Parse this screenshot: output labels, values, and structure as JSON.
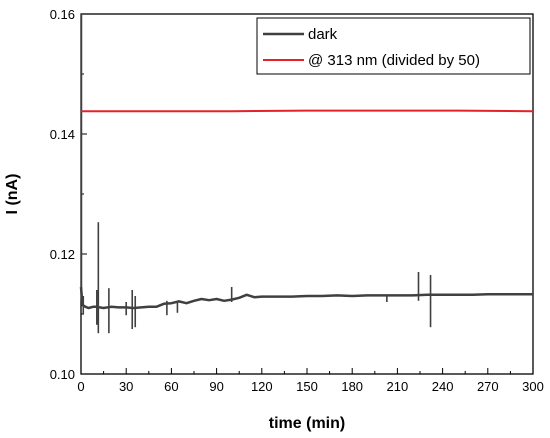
{
  "chart_data": {
    "type": "line",
    "xlabel": "time (min)",
    "ylabel": "I (nA)",
    "xlim": [
      0,
      300
    ],
    "ylim": [
      0.1,
      0.16
    ],
    "x_ticks": [
      "0",
      "30",
      "60",
      "90",
      "120",
      "150",
      "180",
      "210",
      "240",
      "270",
      "300"
    ],
    "y_ticks": [
      "0.10",
      "0.12",
      "0.14",
      "0.16"
    ],
    "grid": false,
    "legend_position": "top-right",
    "series": [
      {
        "name": "dark",
        "color": "#404040",
        "points": [
          [
            0,
            0.1145
          ],
          [
            1,
            0.1115
          ],
          [
            3,
            0.1112
          ],
          [
            5,
            0.111
          ],
          [
            8,
            0.1112
          ],
          [
            10,
            0.1112
          ],
          [
            15,
            0.111
          ],
          [
            20,
            0.1112
          ],
          [
            25,
            0.1111
          ],
          [
            30,
            0.1111
          ],
          [
            35,
            0.111
          ],
          [
            40,
            0.1111
          ],
          [
            45,
            0.1112
          ],
          [
            50,
            0.1112
          ],
          [
            55,
            0.1117
          ],
          [
            60,
            0.1118
          ],
          [
            65,
            0.1121
          ],
          [
            70,
            0.1118
          ],
          [
            75,
            0.1122
          ],
          [
            80,
            0.1125
          ],
          [
            85,
            0.1123
          ],
          [
            90,
            0.1125
          ],
          [
            95,
            0.1122
          ],
          [
            100,
            0.1124
          ],
          [
            105,
            0.1127
          ],
          [
            110,
            0.1132
          ],
          [
            115,
            0.1128
          ],
          [
            120,
            0.1129
          ],
          [
            130,
            0.1129
          ],
          [
            140,
            0.1129
          ],
          [
            150,
            0.113
          ],
          [
            160,
            0.113
          ],
          [
            170,
            0.1131
          ],
          [
            180,
            0.113
          ],
          [
            190,
            0.1131
          ],
          [
            200,
            0.1131
          ],
          [
            210,
            0.1131
          ],
          [
            220,
            0.1131
          ],
          [
            230,
            0.1132
          ],
          [
            240,
            0.1132
          ],
          [
            250,
            0.1132
          ],
          [
            260,
            0.1132
          ],
          [
            270,
            0.1133
          ],
          [
            280,
            0.1133
          ],
          [
            290,
            0.1133
          ],
          [
            300,
            0.1133
          ]
        ],
        "spikes": [
          [
            0.3,
            0.16,
            0.113
          ],
          [
            1.5,
            0.113,
            0.11
          ],
          [
            10.5,
            0.114,
            0.1082
          ],
          [
            11.5,
            0.1253,
            0.1068
          ],
          [
            18.5,
            0.1143,
            0.1068
          ],
          [
            30,
            0.112,
            0.1098
          ],
          [
            34,
            0.114,
            0.1075
          ],
          [
            36,
            0.113,
            0.1078
          ],
          [
            57,
            0.1122,
            0.1098
          ],
          [
            64,
            0.112,
            0.1102
          ],
          [
            100,
            0.1145,
            0.112
          ],
          [
            203,
            0.113,
            0.112
          ],
          [
            224,
            0.117,
            0.1122
          ],
          [
            232,
            0.1165,
            0.1078
          ]
        ]
      },
      {
        "name": "@ 313 nm (divided by 50)",
        "color": "#e32229",
        "points": [
          [
            0,
            0.1438
          ],
          [
            50,
            0.1438
          ],
          [
            100,
            0.1438
          ],
          [
            150,
            0.1439
          ],
          [
            200,
            0.1439
          ],
          [
            250,
            0.1439
          ],
          [
            300,
            0.1438
          ]
        ]
      }
    ]
  }
}
